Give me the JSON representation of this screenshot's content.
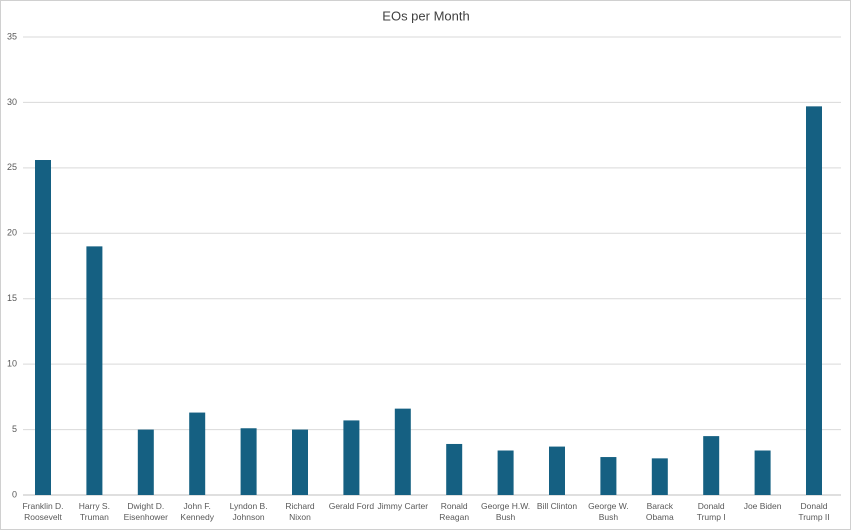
{
  "chart_data": {
    "type": "bar",
    "title": "EOs per Month",
    "categories": [
      "Franklin D. Roosevelt",
      "Harry S. Truman",
      "Dwight D. Eisenhower",
      "John F. Kennedy",
      "Lyndon B. Johnson",
      "Richard Nixon",
      "Gerald Ford",
      "Jimmy Carter",
      "Ronald Reagan",
      "George H.W. Bush",
      "Bill Clinton",
      "George W. Bush",
      "Barack Obama",
      "Donald Trump I",
      "Joe Biden",
      "Donald Trump II"
    ],
    "values": [
      25.6,
      19.0,
      5.0,
      6.3,
      5.1,
      5.0,
      5.7,
      6.6,
      3.9,
      3.4,
      3.7,
      2.9,
      2.8,
      4.5,
      3.4,
      29.7
    ],
    "color": "#156082",
    "ylim": [
      0,
      35
    ],
    "yticks": [
      0,
      5,
      10,
      15,
      20,
      25,
      30,
      35
    ],
    "grid": true
  }
}
